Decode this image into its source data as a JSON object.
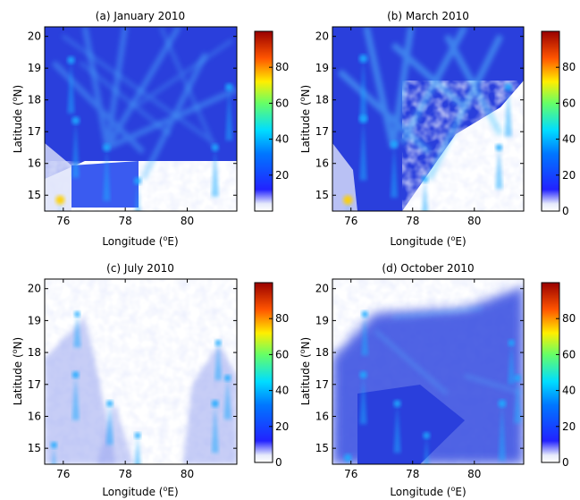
{
  "colors": {
    "ray": "#1faaff",
    "hot": "#ffd000",
    "background_blue": "#2233e0",
    "pale": "#e6e9fb",
    "frame": "#000000"
  },
  "chart_data": [
    {
      "type": "heatmap",
      "title": "(a) January 2010",
      "xlabel": "Longitude (°E)",
      "ylabel": "Latitude (°N)",
      "xlim": [
        75.4,
        81.6
      ],
      "ylim": [
        14.5,
        20.3
      ],
      "xticks": [
        76,
        78,
        80
      ],
      "yticks": [
        15,
        16,
        17,
        18,
        19,
        20
      ],
      "colorbar": {
        "ticks": [
          20,
          40,
          60,
          80
        ],
        "range": [
          0,
          100
        ],
        "colormap": "jet-white"
      },
      "coverage": "dense",
      "hotspots": [
        {
          "x": 76.25,
          "y": 19.25,
          "value": 55
        },
        {
          "x": 76.4,
          "y": 17.35,
          "value": 60
        },
        {
          "x": 77.4,
          "y": 16.5,
          "value": 55
        },
        {
          "x": 78.4,
          "y": 15.45,
          "value": 50
        },
        {
          "x": 81.35,
          "y": 18.4,
          "value": 55
        },
        {
          "x": 80.9,
          "y": 16.5,
          "value": 50
        },
        {
          "x": 75.9,
          "y": 14.85,
          "value": 75
        }
      ]
    },
    {
      "type": "heatmap",
      "title": "(b) March 2010",
      "xlabel": "Longitude (°E)",
      "ylabel": "Latitude (°N)",
      "xlim": [
        75.4,
        81.6
      ],
      "ylim": [
        14.5,
        20.3
      ],
      "xticks": [
        76,
        78,
        80
      ],
      "yticks": [
        15,
        16,
        17,
        18,
        19,
        20
      ],
      "colorbar": {
        "ticks": [
          0,
          20,
          40,
          60,
          80
        ],
        "range": [
          0,
          100
        ],
        "colormap": "jet-white"
      },
      "coverage": "dense",
      "hotspots": [
        {
          "x": 76.4,
          "y": 19.3,
          "value": 65
        },
        {
          "x": 76.4,
          "y": 17.4,
          "value": 65
        },
        {
          "x": 77.4,
          "y": 16.6,
          "value": 55
        },
        {
          "x": 78.4,
          "y": 15.5,
          "value": 40
        },
        {
          "x": 81.1,
          "y": 18.4,
          "value": 50
        },
        {
          "x": 80.8,
          "y": 16.5,
          "value": 40
        },
        {
          "x": 75.9,
          "y": 14.85,
          "value": 80
        }
      ]
    },
    {
      "type": "heatmap",
      "title": "(c) July 2010",
      "xlabel": "Longitude (°E)",
      "ylabel": "Latitude (°N)",
      "xlim": [
        75.4,
        81.6
      ],
      "ylim": [
        14.5,
        20.3
      ],
      "xticks": [
        76,
        78,
        80
      ],
      "yticks": [
        15,
        16,
        17,
        18,
        19,
        20
      ],
      "colorbar": {
        "ticks": [
          0,
          20,
          40,
          60,
          80
        ],
        "range": [
          0,
          100
        ],
        "colormap": "jet-white"
      },
      "coverage": "sparse",
      "hotspots": [
        {
          "x": 76.45,
          "y": 19.2,
          "value": 30
        },
        {
          "x": 76.4,
          "y": 17.3,
          "value": 45
        },
        {
          "x": 77.5,
          "y": 16.4,
          "value": 40
        },
        {
          "x": 78.4,
          "y": 15.4,
          "value": 35
        },
        {
          "x": 81.0,
          "y": 18.3,
          "value": 35
        },
        {
          "x": 81.3,
          "y": 17.2,
          "value": 40
        },
        {
          "x": 80.9,
          "y": 16.4,
          "value": 50
        },
        {
          "x": 75.7,
          "y": 15.1,
          "value": 40
        }
      ]
    },
    {
      "type": "heatmap",
      "title": "(d) October 2010",
      "xlabel": "Longitude (°E)",
      "ylabel": "Latitude (°N)",
      "xlim": [
        75.4,
        81.6
      ],
      "ylim": [
        14.5,
        20.3
      ],
      "xticks": [
        76,
        78,
        80
      ],
      "yticks": [
        15,
        16,
        17,
        18,
        19,
        20
      ],
      "colorbar": {
        "ticks": [
          0,
          20,
          40,
          60,
          80
        ],
        "range": [
          0,
          100
        ],
        "colormap": "jet-white"
      },
      "coverage": "medium",
      "hotspots": [
        {
          "x": 76.45,
          "y": 19.2,
          "value": 40
        },
        {
          "x": 76.4,
          "y": 17.3,
          "value": 50
        },
        {
          "x": 77.5,
          "y": 16.4,
          "value": 50
        },
        {
          "x": 78.45,
          "y": 15.4,
          "value": 45
        },
        {
          "x": 81.2,
          "y": 18.3,
          "value": 40
        },
        {
          "x": 80.9,
          "y": 16.4,
          "value": 60
        },
        {
          "x": 81.4,
          "y": 17.2,
          "value": 45
        },
        {
          "x": 75.9,
          "y": 14.7,
          "value": 55
        }
      ]
    }
  ]
}
